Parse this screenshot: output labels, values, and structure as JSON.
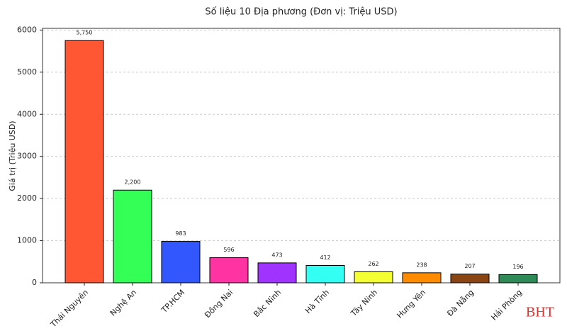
{
  "chart_data": {
    "type": "bar",
    "title": "Số liệu 10 Địa phương (Đơn vị: Triệu USD)",
    "y_label": "Giá trị (Triệu USD)",
    "categories": [
      "Thái Nguyên",
      "Nghệ An",
      "TP.HCM",
      "Đồng Nai",
      "Bắc Ninh",
      "Hà Tĩnh",
      "Tây Ninh",
      "Hưng Yên",
      "Đà Nẵng",
      "Hải Phòng"
    ],
    "values": [
      5750,
      2200,
      983,
      596,
      473,
      412,
      262,
      238,
      207,
      196
    ],
    "value_labels": [
      "5,750",
      "2,200",
      "983",
      "596",
      "473",
      "412",
      "262",
      "238",
      "207",
      "196"
    ],
    "colors": [
      "#ff5733",
      "#33ff57",
      "#3357ff",
      "#ff33a1",
      "#a133ff",
      "#33fff3",
      "#f3ff33",
      "#ff8c00",
      "#8b4513",
      "#2e8b57"
    ],
    "ylim": [
      0,
      6040
    ],
    "yticks": [
      0,
      1000,
      2000,
      3000,
      4000,
      5000,
      6000
    ],
    "grid": true,
    "watermark": "BHT"
  }
}
